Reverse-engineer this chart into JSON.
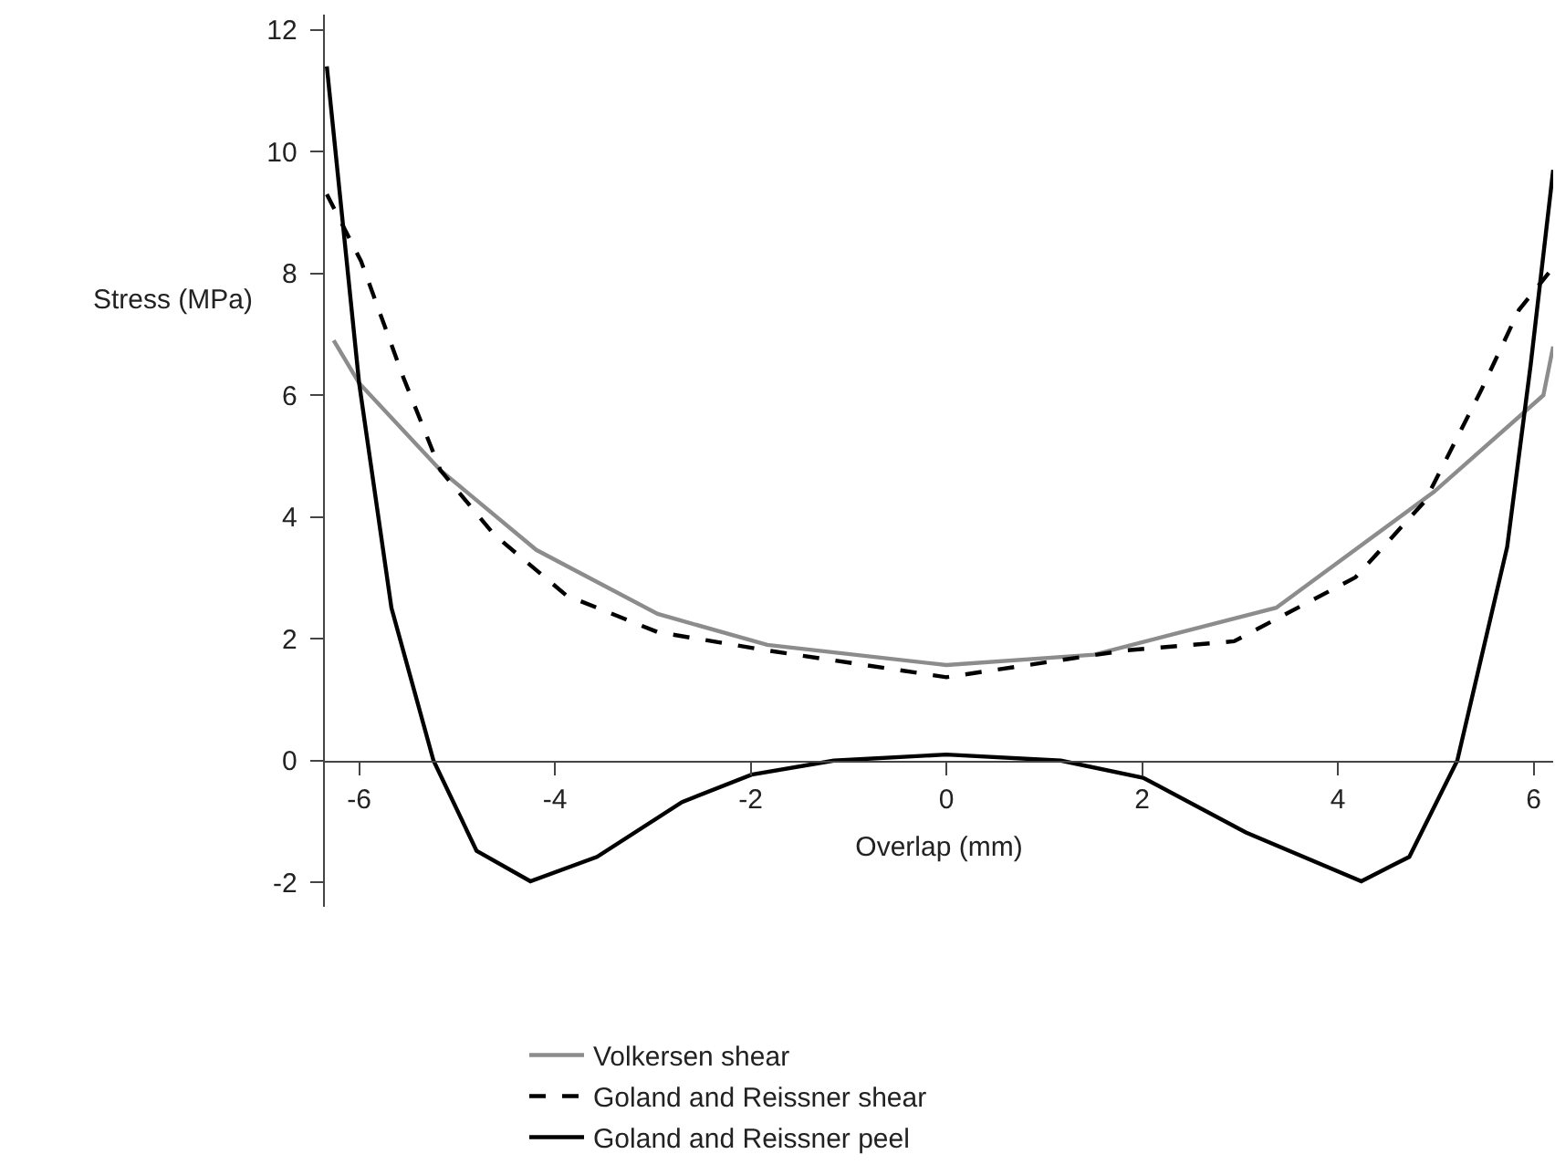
{
  "chart_data": {
    "type": "line",
    "xlabel": "Overlap (mm)",
    "ylabel": "Stress (MPa)",
    "xlim": [
      -6.35,
      6.2
    ],
    "ylim": [
      -2.4,
      12.25
    ],
    "xticks": [
      -6,
      -4,
      -2,
      0,
      2,
      4,
      6
    ],
    "yticks": [
      -2,
      0,
      2,
      4,
      6,
      8,
      10,
      12
    ],
    "legend": "bottom",
    "grid": false,
    "series": [
      {
        "name": "Volkersen shear",
        "color": "#8c8c8c",
        "line_style": "solid",
        "x": [
          -6.26,
          -6.0,
          -5.17,
          -4.19,
          -2.95,
          -1.83,
          0,
          1.51,
          3.37,
          4.98,
          6.1,
          6.2
        ],
        "values": [
          6.9,
          6.2,
          4.77,
          3.46,
          2.41,
          1.9,
          1.57,
          1.74,
          2.51,
          4.41,
          6.0,
          6.8
        ]
      },
      {
        "name": "Goland and Reissner shear",
        "color": "#000000",
        "line_style": "dashed",
        "x": [
          -6.33,
          -5.98,
          -5.55,
          -5.17,
          -4.62,
          -3.88,
          -2.95,
          -1.83,
          0,
          1.83,
          2.94,
          4.18,
          4.89,
          5.47,
          5.85,
          6.2
        ],
        "values": [
          9.3,
          8.2,
          6.3,
          4.77,
          3.71,
          2.71,
          2.11,
          1.81,
          1.37,
          1.81,
          1.96,
          3.01,
          4.26,
          6.1,
          7.4,
          8.1
        ]
      },
      {
        "name": "Goland and Reissner peel",
        "color": "#000000",
        "line_style": "solid",
        "x": [
          -6.33,
          -6.0,
          -5.67,
          -5.24,
          -4.8,
          -4.25,
          -3.57,
          -2.7,
          -1.99,
          -1.15,
          0,
          1.17,
          2.01,
          3.06,
          4.24,
          4.73,
          5.22,
          5.73,
          5.97,
          6.2
        ],
        "values": [
          11.4,
          6.2,
          2.51,
          0,
          -1.48,
          -1.98,
          -1.58,
          -0.68,
          -0.23,
          0,
          0.1,
          0,
          -0.28,
          -1.18,
          -1.98,
          -1.58,
          0,
          3.51,
          6.5,
          9.7
        ]
      }
    ]
  }
}
